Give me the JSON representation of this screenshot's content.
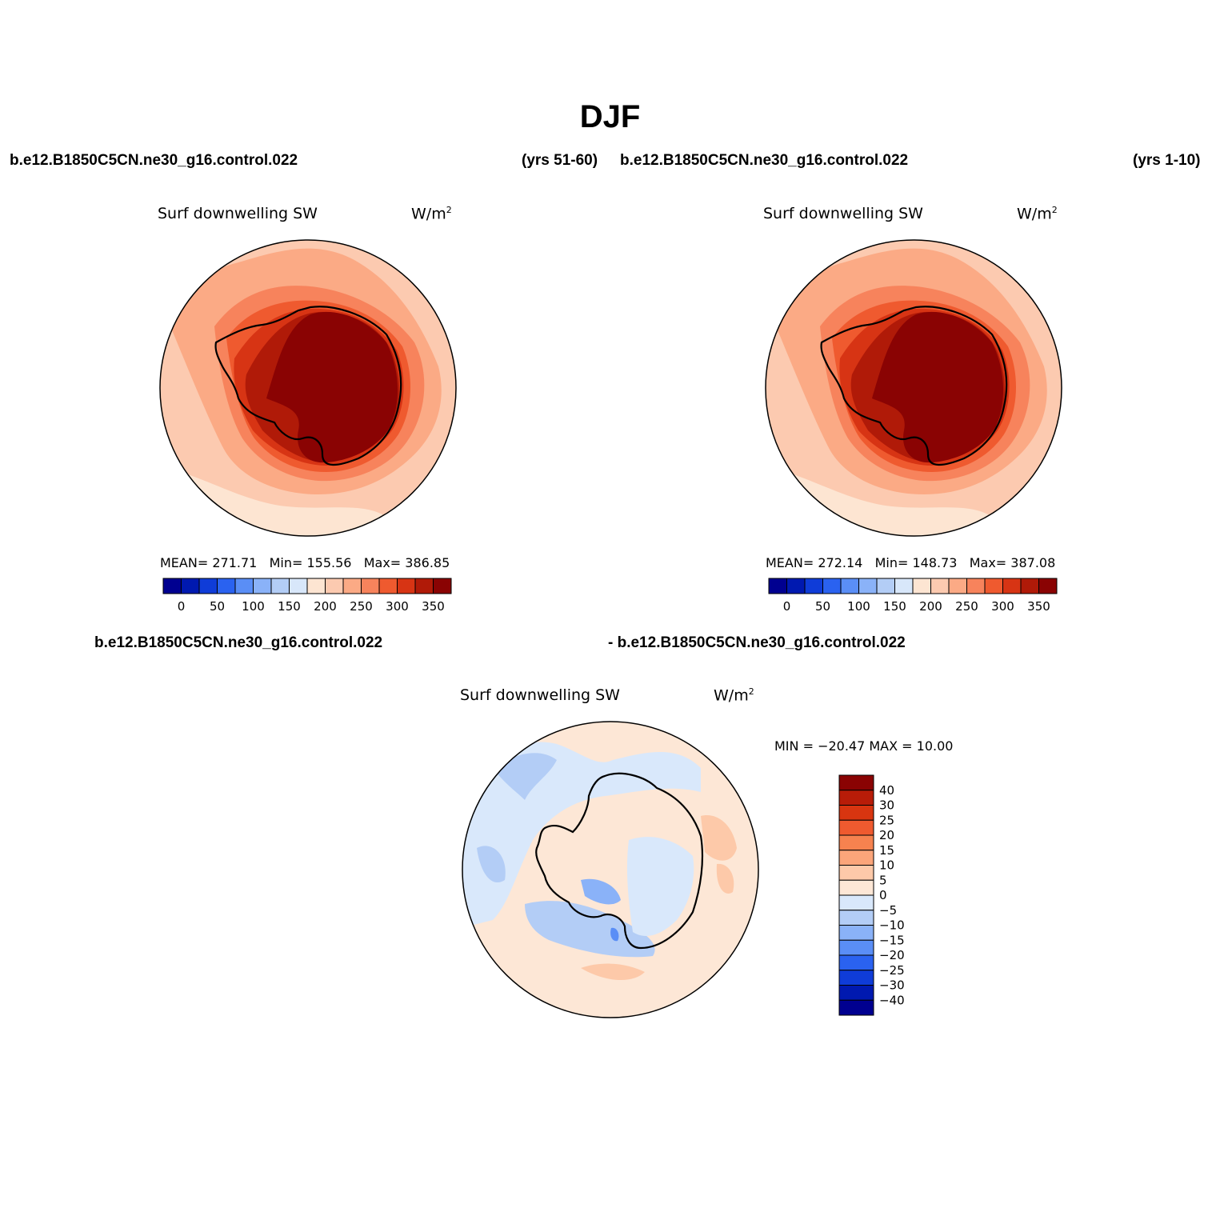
{
  "main_title": "DJF",
  "panel_left": {
    "case_name": "b.e12.B1850C5CN.ne30_g16.control.022",
    "years": "(yrs 51-60)",
    "plot_title": "Surf downwelling SW",
    "units": "W/m",
    "units_sup": "2",
    "stats": {
      "mean_label": "MEAN=",
      "mean": "271.71",
      "min_label": "Min=",
      "min": "155.56",
      "max_label": "Max=",
      "max": "386.85"
    }
  },
  "panel_right": {
    "case_name": "b.e12.B1850C5CN.ne30_g16.control.022",
    "years": "(yrs 1-10)",
    "plot_title": "Surf downwelling SW",
    "units": "W/m",
    "units_sup": "2",
    "stats": {
      "mean_label": "MEAN=",
      "mean": "272.14",
      "min_label": "Min=",
      "min": "148.73",
      "max_label": "Max=",
      "max": "387.08"
    }
  },
  "panel_diff": {
    "case_left": "b.e12.B1850C5CN.ne30_g16.control.022",
    "case_right": "- b.e12.B1850C5CN.ne30_g16.control.022",
    "plot_title": "Surf downwelling SW",
    "units": "W/m",
    "units_sup": "2",
    "minmax": "MIN = −20.47 MAX =  10.00"
  },
  "colorbar_abs": {
    "colors": [
      "#000090",
      "#0019b0",
      "#0f3cd8",
      "#2a62f0",
      "#5a8ef6",
      "#8ab2f8",
      "#b3cdf6",
      "#d8e7fa",
      "#fde5d2",
      "#fccab0",
      "#fbaa85",
      "#f7835c",
      "#ef5a2f",
      "#d73414",
      "#b01a08",
      "#8a0303"
    ],
    "labels": [
      "0",
      "50",
      "100",
      "150",
      "200",
      "250",
      "300",
      "350"
    ]
  },
  "colorbar_diff": {
    "colors": [
      "#8a0303",
      "#b81c08",
      "#d83510",
      "#ef5a2f",
      "#f6824f",
      "#fba57a",
      "#fdc9a9",
      "#fde7d6",
      "#d9e8fb",
      "#b3cdf6",
      "#8ab2f8",
      "#5a8ef6",
      "#2a62f0",
      "#0f3cd8",
      "#0019b0",
      "#000090"
    ],
    "labels": [
      "40",
      "30",
      "25",
      "20",
      "15",
      "10",
      "5",
      "0",
      "−5",
      "−10",
      "−15",
      "−20",
      "−25",
      "−30",
      "−40"
    ]
  }
}
